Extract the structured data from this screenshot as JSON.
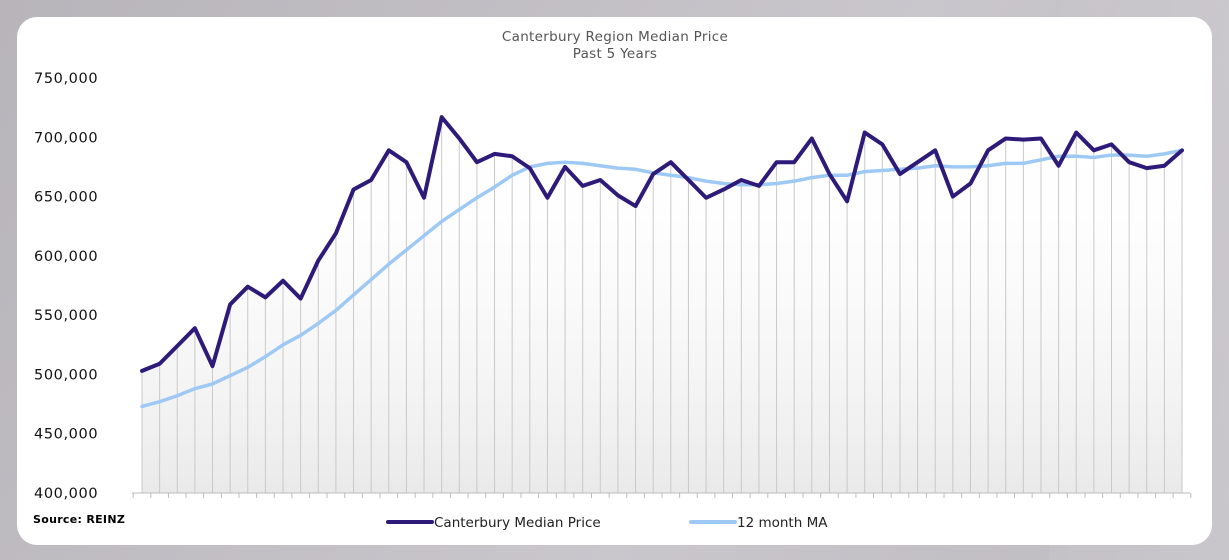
{
  "chart_data": {
    "type": "line",
    "title": "Canterbury Region Median Price",
    "subtitle": "Past 5 Years",
    "xlabel": "",
    "ylabel": "",
    "ylim": [
      400000,
      750000
    ],
    "yticks": [
      750000,
      700000,
      650000,
      600000,
      550000,
      500000,
      450000,
      400000
    ],
    "ytick_labels": [
      "750,000",
      "700,000",
      "650,000",
      "600,000",
      "550,000",
      "500,000",
      "450,000",
      "400,000"
    ],
    "grid": "vertical drop lines per period",
    "legend_position": "bottom-center",
    "source": "Source: REINZ",
    "series": [
      {
        "name": "Canterbury Median Price",
        "color": "#2e1a78",
        "values": [
          503000,
          509000,
          524000,
          539000,
          507000,
          559000,
          574000,
          565000,
          579000,
          564000,
          596000,
          619000,
          656000,
          664000,
          689000,
          679000,
          649000,
          717000,
          699000,
          679000,
          686000,
          684000,
          674000,
          649000,
          675000,
          659000,
          664000,
          651000,
          642000,
          669000,
          679000,
          664000,
          649000,
          656000,
          664000,
          659000,
          679000,
          679000,
          699000,
          669000,
          646000,
          704000,
          694000,
          669000,
          679000,
          689000,
          650000,
          661000,
          689000,
          699000,
          698000,
          699000,
          676000,
          704000,
          689000,
          694000,
          679000,
          674000,
          676000,
          689000
        ]
      },
      {
        "name": "12 month MA",
        "color": "#9ec9f5",
        "values": [
          473000,
          477000,
          482000,
          488000,
          492000,
          499000,
          506000,
          515000,
          525000,
          533000,
          543000,
          554000,
          567000,
          580000,
          593000,
          605000,
          617000,
          629000,
          639000,
          649000,
          658000,
          668000,
          675000,
          678000,
          679000,
          678000,
          676000,
          674000,
          673000,
          670000,
          668000,
          666000,
          663000,
          661000,
          660000,
          660000,
          661000,
          663000,
          666000,
          668000,
          668000,
          671000,
          672000,
          673000,
          674000,
          676000,
          675000,
          675000,
          676000,
          678000,
          678000,
          681000,
          684000,
          684000,
          683000,
          685000,
          685000,
          684000,
          686000,
          689000
        ]
      }
    ]
  }
}
